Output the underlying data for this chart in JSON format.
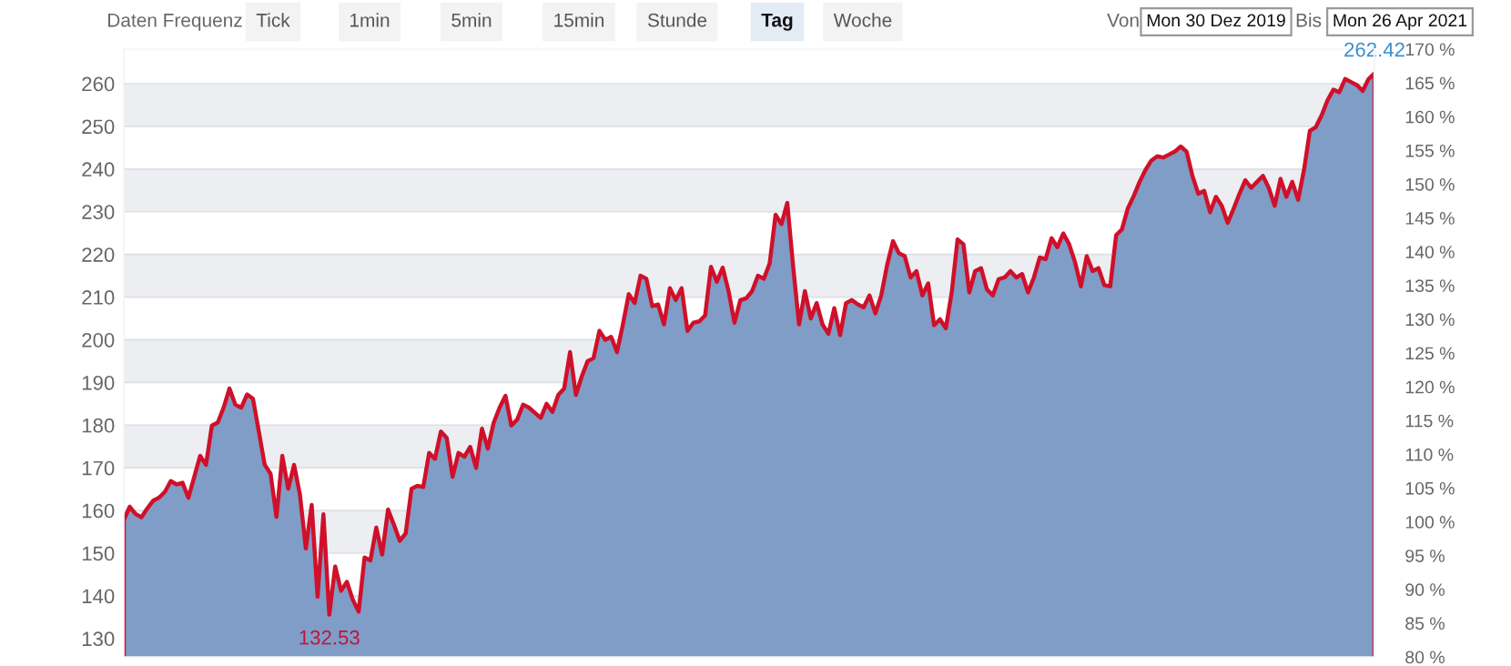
{
  "chart_data": {
    "type": "area",
    "categories": [
      null,
      null,
      null,
      null,
      null,
      null,
      null,
      null,
      null,
      null,
      null,
      null,
      null,
      null,
      null,
      null,
      null,
      null,
      null,
      null,
      null,
      null,
      null,
      null,
      null,
      null,
      null,
      null,
      null,
      null,
      null,
      null,
      null,
      null,
      null,
      null,
      null,
      null,
      null,
      null,
      null,
      null,
      null,
      null,
      null,
      null,
      null,
      null,
      null,
      null,
      null,
      null,
      null,
      null,
      null,
      null,
      null,
      null,
      null,
      null,
      null,
      null,
      null,
      null,
      null,
      null,
      null,
      null,
      null,
      null,
      null,
      null,
      null,
      null,
      null,
      null,
      null,
      null,
      null,
      null,
      null,
      null,
      null,
      null,
      null,
      null,
      null,
      null,
      null,
      null,
      null,
      null,
      null,
      null,
      null,
      null,
      null,
      null,
      null,
      null,
      null,
      null,
      null,
      null,
      null,
      null,
      null,
      null,
      null,
      null,
      null,
      null,
      null,
      null,
      null,
      null,
      null,
      null,
      null,
      null,
      null,
      null,
      null,
      null,
      null,
      null,
      null,
      null,
      null,
      null,
      null,
      null,
      null,
      null,
      null,
      null,
      null,
      null,
      null,
      null,
      null,
      null,
      null,
      null,
      null,
      null,
      null,
      null,
      null,
      null,
      null,
      null,
      null,
      null,
      null,
      null,
      null,
      null,
      null,
      null,
      null,
      null,
      null,
      null,
      null,
      null,
      null,
      null,
      null,
      null,
      null,
      null,
      null,
      null,
      null,
      null,
      null,
      null,
      null,
      null,
      null,
      null,
      null,
      null,
      null,
      null,
      null,
      null,
      null,
      null,
      null,
      null,
      null,
      null,
      null,
      null,
      null,
      null,
      null,
      null,
      null,
      null,
      null,
      null,
      null,
      null,
      null,
      null,
      null,
      null,
      null,
      null,
      null,
      null
    ],
    "series": [
      {
        "color": "#d0102a",
        "values": [
          157.7,
          160.9,
          159.2,
          158.4,
          160.5,
          162.3,
          163,
          164.4,
          166.9,
          166.1,
          166.5,
          163,
          167.9,
          172.8,
          170.7,
          179.9,
          180.6,
          184.1,
          188.6,
          184.8,
          184.1,
          187.2,
          186.2,
          178.5,
          170.7,
          168.6,
          158.5,
          172.8,
          165.1,
          170.7,
          163.7,
          151.1,
          161.3,
          139.8,
          159.1,
          135.6,
          146.9,
          141.2,
          143.3,
          139.1,
          136.3,
          149,
          148.3,
          156,
          149.7,
          160.2,
          156.7,
          152.9,
          154.6,
          165.1,
          165.8,
          165.5,
          173.5,
          172.1,
          178.5,
          177,
          167.9,
          173.5,
          172.6,
          174.9,
          170,
          179.2,
          174.5,
          180.6,
          184.1,
          186.9,
          179.9,
          181.3,
          184.8,
          184.1,
          182.9,
          181.7,
          185,
          183.1,
          187.1,
          188.6,
          197.1,
          187.1,
          191.4,
          195,
          195.7,
          202.1,
          200,
          200.7,
          197.1,
          203.6,
          210.7,
          208.6,
          215,
          214.3,
          207.9,
          208.3,
          203.6,
          212.1,
          209.3,
          212.1,
          202.1,
          204,
          204.3,
          205.7,
          217.1,
          213.6,
          216.9,
          211.4,
          204,
          209.3,
          209.7,
          211.4,
          215,
          214.3,
          217.9,
          229.3,
          227.1,
          232.1,
          217.1,
          203.6,
          211.4,
          205,
          208.6,
          203.6,
          201.4,
          207.4,
          201.1,
          208.6,
          209.3,
          208.3,
          207.6,
          210.4,
          206.2,
          210.4,
          217.5,
          223.1,
          220.3,
          219.6,
          214.6,
          216.1,
          210.4,
          213.2,
          203.4,
          204.8,
          202.7,
          211.1,
          223.5,
          222.4,
          211.1,
          216.1,
          216.8,
          211.8,
          210.4,
          214.2,
          214.6,
          216.1,
          214.6,
          215.4,
          211.1,
          214.6,
          219.3,
          218.9,
          223.8,
          221.7,
          224.9,
          222.4,
          218.2,
          212.5,
          219.6,
          216.1,
          216.8,
          212.8,
          212.5,
          224.5,
          225.9,
          230.8,
          233.7,
          237,
          239.8,
          242,
          243,
          242.7,
          243.4,
          244.1,
          245.3,
          244.1,
          238.4,
          234.2,
          234.9,
          229.9,
          233.5,
          231.4,
          227.4,
          230.7,
          234.2,
          237.4,
          235.6,
          237,
          238.4,
          235.6,
          231.4,
          237.7,
          233.5,
          237,
          232.8,
          239.8,
          249,
          249.8,
          252.6,
          256.1,
          258.6,
          258,
          261.1,
          260.4,
          259.7,
          258.3,
          261.1,
          262.4
        ]
      }
    ],
    "ylim": [
      125.7,
      268.1
    ],
    "yticks": [
      130,
      140,
      150,
      160,
      170,
      180,
      190,
      200,
      210,
      220,
      230,
      240,
      250,
      260
    ],
    "y2lim": [
      80,
      170
    ],
    "y2ticks": [
      {
        "value": 80,
        "label": "80 %"
      },
      {
        "value": 85,
        "label": "85 %"
      },
      {
        "value": 90,
        "label": "90 %"
      },
      {
        "value": 95,
        "label": "95 %"
      },
      {
        "value": 100,
        "label": "100 %"
      },
      {
        "value": 105,
        "label": "105 %"
      },
      {
        "value": 110,
        "label": "110 %"
      },
      {
        "value": 115,
        "label": "115 %"
      },
      {
        "value": 120,
        "label": "120 %"
      },
      {
        "value": 125,
        "label": "125 %"
      },
      {
        "value": 130,
        "label": "130 %"
      },
      {
        "value": 135,
        "label": "135 %"
      },
      {
        "value": 140,
        "label": "140 %"
      },
      {
        "value": 145,
        "label": "145 %"
      },
      {
        "value": 150,
        "label": "150 %"
      },
      {
        "value": 155,
        "label": "155 %"
      },
      {
        "value": 160,
        "label": "160 %"
      },
      {
        "value": 165,
        "label": "165 %"
      },
      {
        "value": 170,
        "label": "170 %"
      }
    ],
    "grid": "y",
    "legend": false,
    "tick_labels": "y",
    "annotations": [
      "Daten Frequenz",
      "Tick",
      "1min",
      "5min",
      "15min",
      "Stunde",
      "Tag",
      "Woche",
      "Von",
      "Mon 30 Dez 2019",
      "Bis",
      "Mon 26 Apr 2021",
      "132.53",
      "262.42"
    ]
  }
}
